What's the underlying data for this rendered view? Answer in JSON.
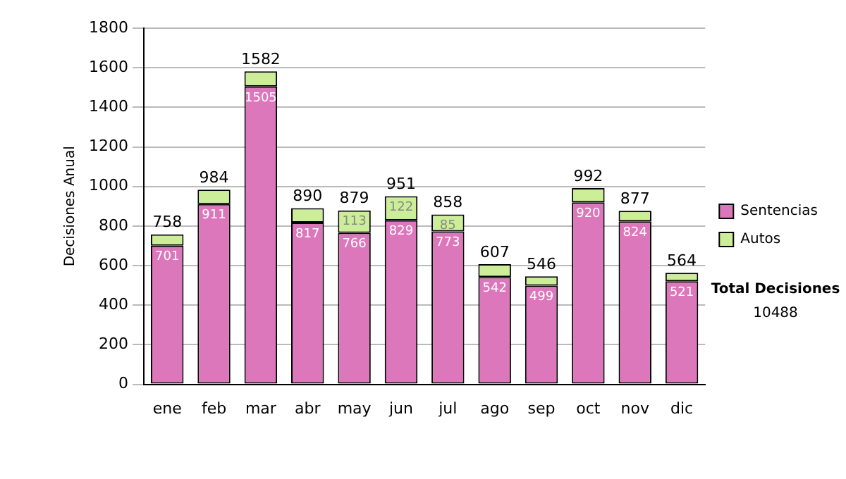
{
  "chart_data": {
    "type": "bar",
    "stacked": true,
    "ylabel": "Decisiones Anual",
    "categories": [
      "ene",
      "feb",
      "mar",
      "abr",
      "may",
      "jun",
      "jul",
      "ago",
      "sep",
      "oct",
      "nov",
      "dic"
    ],
    "series": [
      {
        "name": "Sentencias",
        "color": "#dd77bb",
        "values": [
          701,
          911,
          1505,
          817,
          766,
          829,
          773,
          542,
          499,
          920,
          824,
          521
        ],
        "value_labels": [
          "701",
          "911",
          "1505",
          "817",
          "766",
          "829",
          "773",
          "542",
          "499",
          "920",
          "824",
          "521"
        ]
      },
      {
        "name": "Autos",
        "color": "#ccee99",
        "values": [
          57,
          73,
          77,
          73,
          113,
          122,
          85,
          65,
          47,
          72,
          53,
          43
        ],
        "value_labels": [
          null,
          null,
          null,
          null,
          "113",
          "122",
          "85",
          null,
          null,
          null,
          null,
          null
        ]
      }
    ],
    "totals": [
      "758",
      "984",
      "1582",
      "890",
      "879",
      "951",
      "858",
      "607",
      "546",
      "992",
      "877",
      "564"
    ],
    "ylim": [
      0,
      1800
    ],
    "yticks": [
      0,
      200,
      400,
      600,
      800,
      1000,
      1200,
      1400,
      1600,
      1800
    ],
    "grid": "y",
    "legend": "right",
    "annotations": [
      "Total Decisiones",
      "10488"
    ]
  }
}
